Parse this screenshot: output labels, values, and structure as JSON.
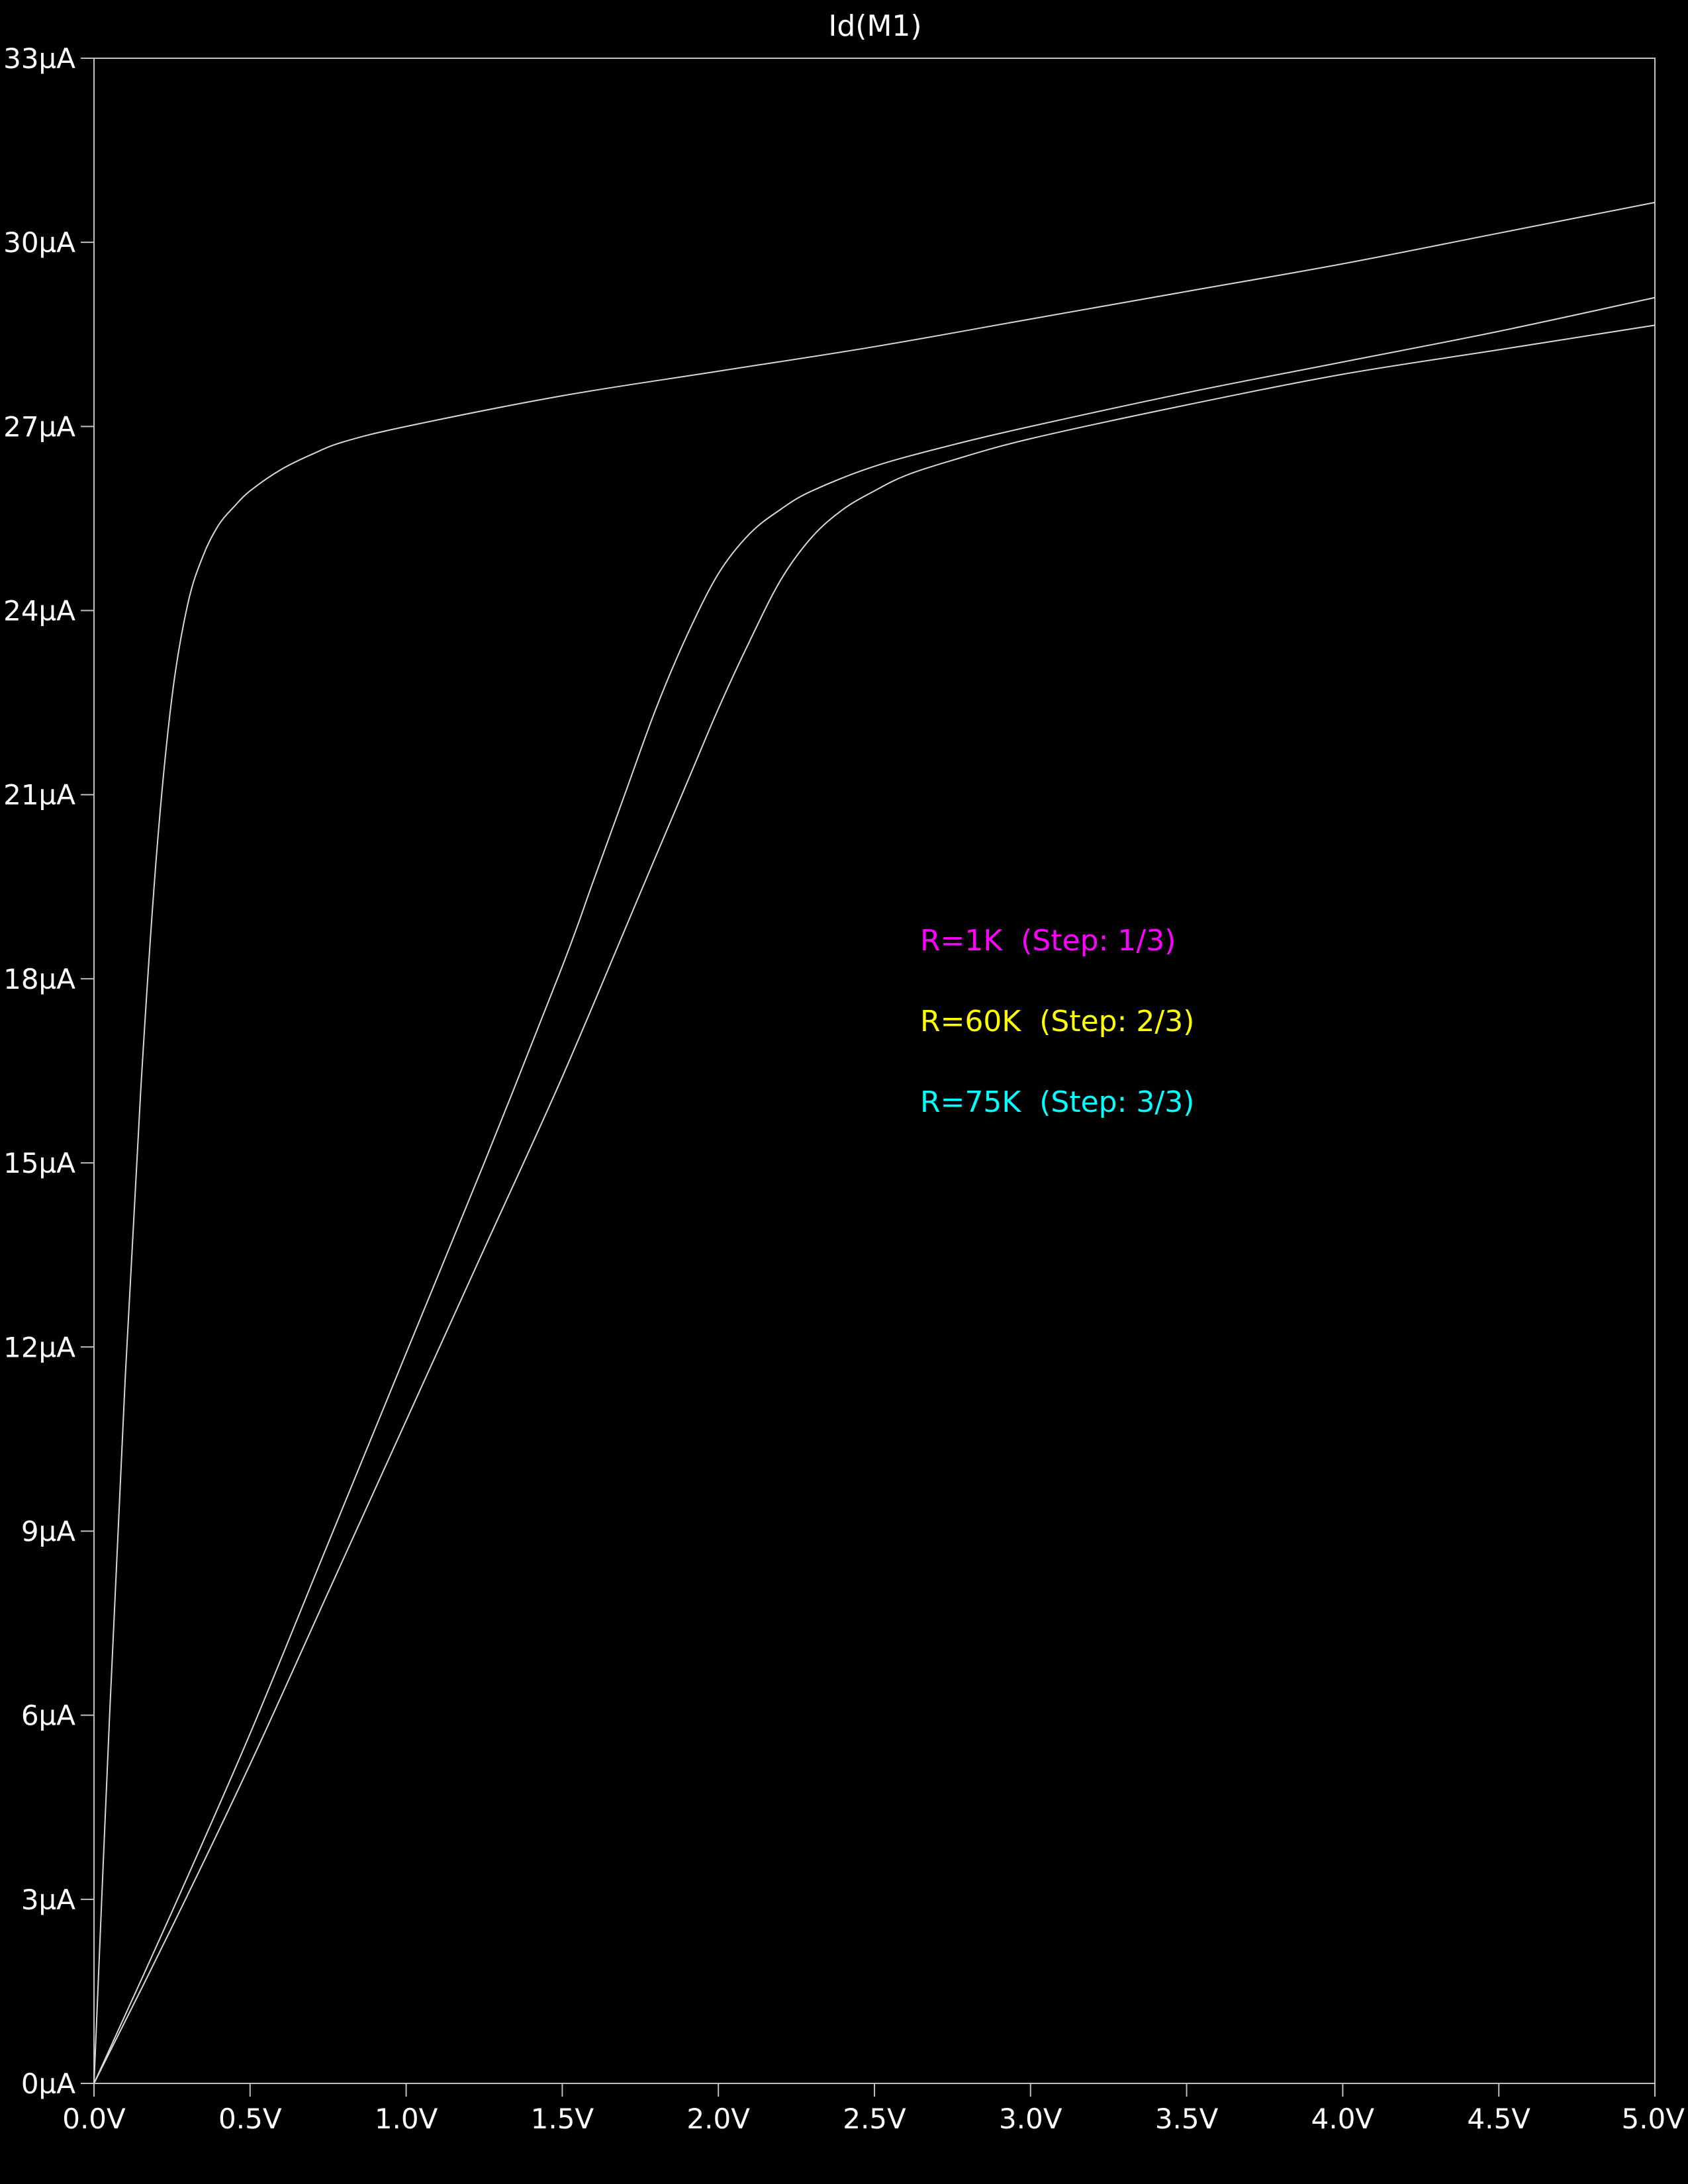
{
  "chart_data": {
    "type": "line",
    "title": "Id(M1)",
    "xlim": [
      0,
      5.0
    ],
    "ylim": [
      0,
      33
    ],
    "x_ticks": [
      0,
      0.5,
      1.0,
      1.5,
      2.0,
      2.5,
      3.0,
      3.5,
      4.0,
      4.5,
      5.0
    ],
    "x_tick_labels": [
      "0.0V",
      "0.5V",
      "1.0V",
      "1.5V",
      "2.0V",
      "2.5V",
      "3.0V",
      "3.5V",
      "4.0V",
      "4.5V",
      "5.0V"
    ],
    "y_ticks": [
      0,
      3,
      6,
      9,
      12,
      15,
      18,
      21,
      24,
      27,
      30,
      33
    ],
    "y_tick_labels": [
      "0µA",
      "3µA",
      "6µA",
      "9µA",
      "12µA",
      "15µA",
      "18µA",
      "21µA",
      "24µA",
      "27µA",
      "30µA",
      "33µA"
    ],
    "grid": false,
    "legend_placement": "center-right",
    "background": "#000000",
    "axis_color": "#bfbfbf",
    "trace_color": "#d8d8d8",
    "series": [
      {
        "name": "R=1K  (Step: 1/3)",
        "color": "#ff00ff",
        "x": [
          0,
          0.05,
          0.1,
          0.15,
          0.2,
          0.25,
          0.3,
          0.35,
          0.4,
          0.45,
          0.5,
          0.6,
          0.7,
          0.8,
          1.0,
          1.5,
          2.0,
          2.5,
          3.0,
          3.5,
          4.0,
          4.5,
          5.0
        ],
        "y": [
          0,
          6.0,
          11.5,
          16.2,
          20.0,
          22.6,
          24.1,
          24.9,
          25.4,
          25.7,
          25.95,
          26.3,
          26.55,
          26.75,
          27.0,
          27.5,
          27.9,
          28.3,
          28.75,
          29.2,
          29.65,
          30.15,
          30.65
        ]
      },
      {
        "name": "R=60K  (Step: 2/3)",
        "color": "#ffff00",
        "x": [
          0,
          0.25,
          0.5,
          0.75,
          1.0,
          1.25,
          1.5,
          1.6,
          1.7,
          1.8,
          1.9,
          2.0,
          2.1,
          2.2,
          2.3,
          2.5,
          2.75,
          3.0,
          3.5,
          4.0,
          4.5,
          5.0
        ],
        "y": [
          0,
          2.8,
          5.7,
          8.8,
          11.9,
          15.0,
          18.2,
          19.6,
          21.0,
          22.4,
          23.6,
          24.6,
          25.25,
          25.65,
          25.95,
          26.35,
          26.7,
          27.0,
          27.55,
          28.05,
          28.55,
          29.1
        ]
      },
      {
        "name": "R=75K  (Step: 3/3)",
        "color": "#00ffff",
        "x": [
          0,
          0.25,
          0.5,
          0.75,
          1.0,
          1.25,
          1.5,
          1.75,
          1.9,
          2.0,
          2.1,
          2.2,
          2.3,
          2.4,
          2.5,
          2.6,
          2.75,
          3.0,
          3.5,
          4.0,
          4.5,
          5.0
        ],
        "y": [
          0,
          2.55,
          5.2,
          8.0,
          10.8,
          13.6,
          16.4,
          19.4,
          21.2,
          22.4,
          23.5,
          24.5,
          25.2,
          25.65,
          25.95,
          26.2,
          26.45,
          26.8,
          27.35,
          27.85,
          28.25,
          28.65
        ]
      }
    ]
  }
}
